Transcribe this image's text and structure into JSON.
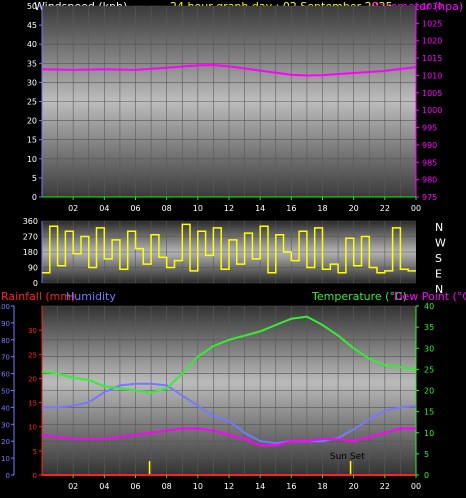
{
  "header": {
    "left": "Windspeed (kph)",
    "center": "24 hour graph day : 02 September 2025",
    "right": "Barometer (hpa)"
  },
  "colors": {
    "background": "#000000",
    "wind_axis": "#7777ff",
    "baro_axis": "#ff00ff",
    "time_axis": "#00ff00",
    "dir_trace": "#ffff00",
    "rain": "#ff2020",
    "humidity": "#7777ff",
    "temperature": "#33ee33",
    "dewpoint": "#ff00ff",
    "sun": "#ffff00"
  },
  "x_ticks": [
    "02",
    "04",
    "06",
    "08",
    "10",
    "12",
    "14",
    "16",
    "18",
    "20",
    "22",
    "00"
  ],
  "chart_data": [
    {
      "type": "line",
      "name": "wind-barometer",
      "y_left": {
        "label": "Windspeed (kph)",
        "ticks": [
          0,
          5,
          10,
          15,
          20,
          25,
          30,
          35,
          40,
          45,
          50
        ],
        "range": [
          0,
          50
        ]
      },
      "y_right": {
        "label": "Barometer (hpa)",
        "ticks": [
          975,
          980,
          985,
          990,
          995,
          1000,
          1005,
          1010,
          1015,
          1020,
          1025,
          1030
        ],
        "range": [
          975,
          1030
        ]
      },
      "x_range_hours": [
        0,
        24
      ],
      "series": [
        {
          "name": "Barometer (hpa)",
          "axis": "right",
          "x": [
            0,
            2,
            4,
            6,
            8,
            10,
            11,
            12,
            14,
            16,
            17,
            18,
            20,
            22,
            24
          ],
          "values": [
            1011.8,
            1011.6,
            1011.8,
            1011.6,
            1012.2,
            1012.9,
            1013.0,
            1012.6,
            1011.4,
            1010.2,
            1010.0,
            1010.1,
            1010.7,
            1011.3,
            1012.4
          ]
        }
      ]
    },
    {
      "type": "line",
      "name": "wind-direction",
      "y_left": {
        "ticks": [
          0,
          90,
          180,
          270,
          360
        ],
        "range": [
          0,
          360
        ]
      },
      "y_right_labels": [
        "N",
        "W",
        "S",
        "E",
        "N"
      ],
      "x_range_hours": [
        0,
        24
      ],
      "series": [
        {
          "name": "direction",
          "x": [
            0,
            0.5,
            1,
            1.5,
            2,
            2.5,
            3,
            3.5,
            4,
            4.5,
            5,
            5.5,
            6,
            6.5,
            7,
            7.5,
            8,
            8.5,
            9,
            9.5,
            10,
            10.5,
            11,
            11.5,
            12,
            12.5,
            13,
            13.5,
            14,
            14.5,
            15,
            15.5,
            16,
            16.5,
            17,
            17.5,
            18,
            18.5,
            19,
            19.5,
            20,
            20.5,
            21,
            21.5,
            22,
            22.5,
            23,
            23.5,
            24
          ],
          "values": [
            60,
            330,
            100,
            300,
            170,
            270,
            90,
            320,
            140,
            250,
            80,
            300,
            200,
            110,
            280,
            150,
            90,
            130,
            340,
            70,
            300,
            160,
            320,
            80,
            250,
            110,
            290,
            140,
            330,
            60,
            280,
            180,
            130,
            300,
            90,
            320,
            80,
            110,
            60,
            260,
            100,
            270,
            90,
            60,
            70,
            320,
            80,
            70,
            70
          ]
        }
      ]
    },
    {
      "type": "line",
      "name": "rain-humidity-temperature",
      "header_left": "Rainfall (mm)",
      "header_humidity": "Humidity",
      "header_temp": "Temperature (°C)",
      "header_dew": "Dew Point (°C)",
      "y_humidity": {
        "ticks": [
          0,
          10,
          20,
          30,
          40,
          50,
          60,
          70,
          80,
          90,
          100
        ],
        "range": [
          0,
          100
        ]
      },
      "y_rain": {
        "ticks": [
          0,
          5,
          10,
          15,
          20,
          25,
          30
        ],
        "range": [
          0,
          35
        ]
      },
      "y_temp": {
        "ticks": [
          0,
          5,
          10,
          15,
          20,
          25,
          30,
          35,
          40
        ],
        "range": [
          0,
          40
        ]
      },
      "x_range_hours": [
        0,
        24
      ],
      "annotations": [
        {
          "text": "Sun Set",
          "hour": 19.5
        }
      ],
      "sun_markers_hours": [
        6.9,
        19.8
      ],
      "series": [
        {
          "name": "Temperature (°C)",
          "axis": "temp",
          "x": [
            0,
            1,
            2,
            3,
            4,
            5,
            6,
            7,
            8,
            9,
            10,
            11,
            12,
            13,
            14,
            15,
            16,
            17,
            18,
            19,
            20,
            21,
            22,
            23,
            24
          ],
          "values": [
            24.5,
            24.0,
            23.0,
            22.5,
            21.0,
            20.5,
            20.0,
            19.5,
            20.5,
            24.0,
            28.0,
            30.5,
            32.0,
            33.0,
            34.0,
            35.5,
            37.0,
            37.5,
            35.5,
            33.0,
            30.0,
            27.5,
            26.0,
            25.5,
            25.0
          ]
        },
        {
          "name": "Humidity",
          "axis": "humidity",
          "x": [
            0,
            1,
            2,
            3,
            4,
            5,
            6,
            7,
            8,
            9,
            10,
            11,
            12,
            13,
            14,
            15,
            16,
            17,
            18,
            19,
            20,
            21,
            22,
            23,
            24
          ],
          "values": [
            40,
            40,
            41,
            43,
            49,
            53,
            54,
            54,
            53,
            47,
            41,
            35,
            32,
            25,
            20,
            19,
            20,
            20,
            20,
            22,
            27,
            33,
            38,
            40,
            41
          ]
        },
        {
          "name": "Dew Point (°C)",
          "axis": "temp",
          "x": [
            0,
            1,
            2,
            3,
            4,
            5,
            6,
            7,
            8,
            9,
            10,
            11,
            12,
            13,
            14,
            15,
            16,
            17,
            18,
            19,
            20,
            21,
            22,
            23,
            24
          ],
          "values": [
            9.5,
            9.0,
            8.5,
            8.5,
            8.5,
            9.0,
            9.5,
            10.0,
            10.5,
            11.0,
            11.0,
            10.5,
            9.5,
            8.5,
            7.0,
            7.0,
            8.0,
            8.0,
            8.5,
            8.5,
            8.0,
            9.0,
            10.0,
            11.0,
            11.0
          ]
        },
        {
          "name": "Rainfall (mm)",
          "axis": "rain",
          "x": [
            0,
            24
          ],
          "values": [
            0,
            0
          ]
        }
      ]
    }
  ]
}
